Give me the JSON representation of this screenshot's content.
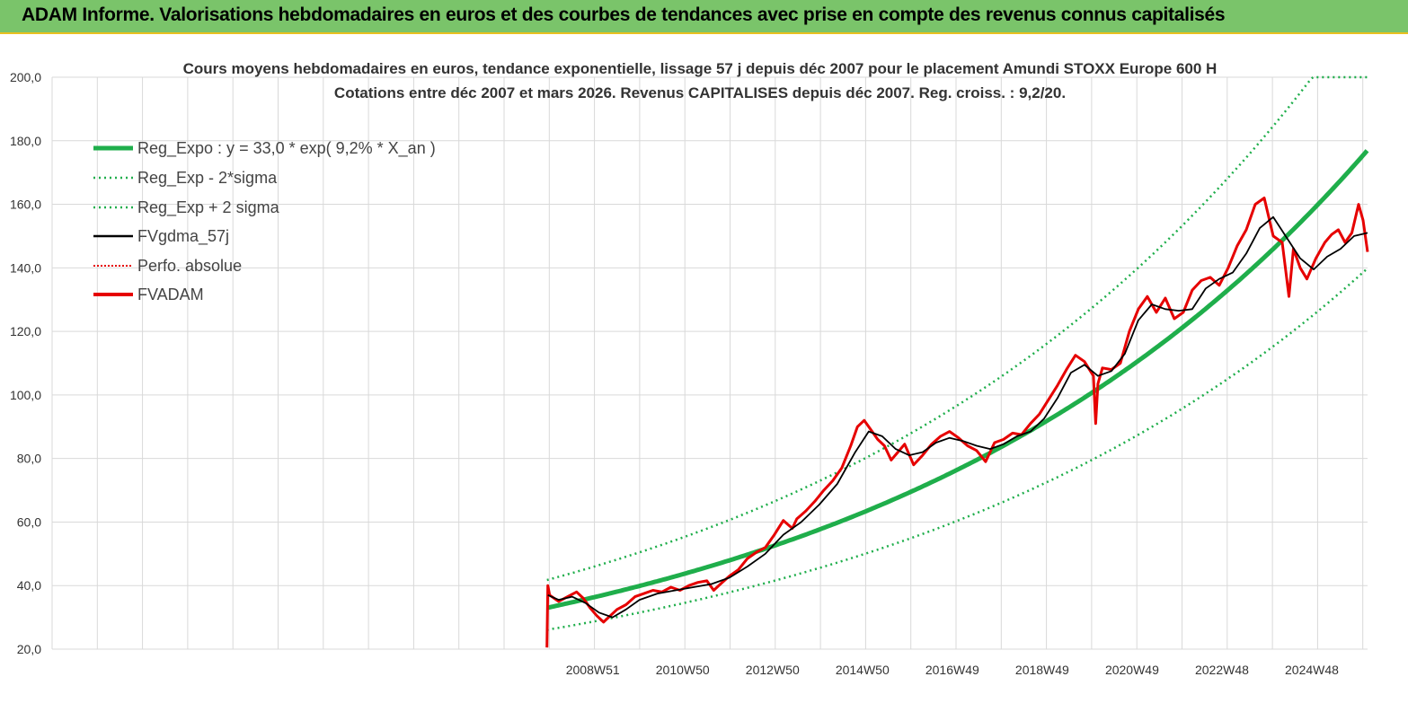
{
  "banner": {
    "title": "ADAM Informe. Valorisations hebdomadaires en euros et des courbes de tendances avec prise en compte des revenus connus capitalisés"
  },
  "colors": {
    "banner_bg": "#7ac46a",
    "trend_green": "#1fae4b",
    "fvadam_red": "#e60000",
    "smooth_black": "#000000",
    "grid": "#d9d9d9"
  },
  "chart_data": {
    "type": "line",
    "title_lines": [
      "Cours moyens hebdomadaires en euros, tendance exponentielle, lissage 57 j depuis déc 2007 pour le placement Amundi STOXX Europe 600 H",
      "Cotations entre déc 2007 et mars 2026. Revenus CAPITALISES depuis déc 2007. Reg. croiss. : 9,2/20."
    ],
    "y_ticks": [
      "20,0",
      "40,0",
      "60,0",
      "80,0",
      "100,0",
      "120,0",
      "140,0",
      "160,0",
      "180,0",
      "200,0"
    ],
    "ylim": [
      20,
      200
    ],
    "x_ticks": [
      "2008W51",
      "2010W50",
      "2012W50",
      "2014W50",
      "2016W49",
      "2018W49",
      "2020W49",
      "2022W48",
      "2024W48"
    ],
    "x_tick_years": [
      2008.96,
      2010.96,
      2012.96,
      2014.96,
      2016.96,
      2018.96,
      2020.96,
      2022.96,
      2024.96
    ],
    "xlim": [
      1996.93,
      2026.2
    ],
    "grid": true,
    "legend_position": "top-left",
    "legend": [
      "Reg_Expo : y = 33,0 * exp( 9,2% *  X_an )",
      "Reg_Exp - 2*sigma",
      "Reg_Exp + 2 sigma",
      "FVgdma_57j",
      "Perfo. absolue",
      "FVADAM"
    ],
    "regression": {
      "a": 33.0,
      "rate": 0.092,
      "start": 2007.94,
      "end": 2026.2,
      "lower_factor": 0.79,
      "upper_factor": 1.265,
      "cap": 200
    },
    "series": [
      {
        "name": "FVADAM",
        "x": [
          2007.94,
          2007.96,
          2008.0,
          2008.2,
          2008.4,
          2008.6,
          2008.75,
          2008.9,
          2009.05,
          2009.2,
          2009.35,
          2009.5,
          2009.7,
          2009.9,
          2010.1,
          2010.3,
          2010.5,
          2010.7,
          2010.9,
          2011.1,
          2011.3,
          2011.5,
          2011.65,
          2011.8,
          2012.0,
          2012.2,
          2012.4,
          2012.6,
          2012.8,
          2013.0,
          2013.2,
          2013.4,
          2013.5,
          2013.7,
          2013.9,
          2014.1,
          2014.3,
          2014.5,
          2014.7,
          2014.85,
          2015.0,
          2015.15,
          2015.3,
          2015.45,
          2015.6,
          2015.75,
          2015.9,
          2016.1,
          2016.3,
          2016.5,
          2016.7,
          2016.9,
          2017.1,
          2017.3,
          2017.5,
          2017.7,
          2017.9,
          2018.1,
          2018.3,
          2018.5,
          2018.7,
          2018.9,
          2019.1,
          2019.3,
          2019.5,
          2019.7,
          2019.9,
          2020.1,
          2020.15,
          2020.2,
          2020.3,
          2020.5,
          2020.7,
          2020.9,
          2021.1,
          2021.3,
          2021.5,
          2021.7,
          2021.9,
          2022.1,
          2022.3,
          2022.5,
          2022.7,
          2022.9,
          2023.1,
          2023.3,
          2023.5,
          2023.7,
          2023.9,
          2024.1,
          2024.3,
          2024.45,
          2024.55,
          2024.7,
          2024.85,
          2025.05,
          2025.25,
          2025.4,
          2025.55,
          2025.7,
          2025.85,
          2026.0,
          2026.1,
          2026.2
        ],
        "values": [
          20.5,
          40.0,
          37.0,
          35.0,
          36.5,
          38.0,
          36.0,
          33.0,
          30.5,
          28.5,
          30.5,
          32.5,
          34.0,
          36.5,
          37.5,
          38.5,
          38.0,
          39.5,
          38.5,
          40.0,
          41.0,
          41.5,
          38.5,
          40.5,
          43.0,
          45.0,
          48.5,
          50.5,
          52.0,
          56.0,
          60.5,
          58.0,
          61.0,
          63.5,
          66.5,
          70.0,
          73.0,
          77.0,
          84.0,
          90.0,
          92.0,
          89.0,
          86.0,
          84.0,
          79.5,
          82.0,
          84.5,
          78.0,
          81.0,
          84.5,
          87.0,
          88.5,
          86.5,
          84.0,
          82.5,
          79.0,
          85.0,
          86.0,
          88.0,
          87.5,
          91.0,
          94.0,
          98.5,
          103.0,
          108.0,
          112.5,
          110.5,
          106.0,
          91.0,
          103.5,
          108.5,
          108.0,
          110.0,
          120.0,
          127.0,
          131.0,
          126.0,
          130.5,
          124.0,
          126.0,
          133.0,
          136.0,
          137.0,
          134.5,
          140.0,
          147.0,
          152.0,
          160.0,
          162.0,
          150.0,
          148.0,
          131.0,
          146.0,
          140.0,
          136.5,
          143.0,
          148.0,
          150.5,
          152.0,
          148.0,
          151.0,
          160.0,
          155.0,
          145.0
        ]
      },
      {
        "name": "FVgdma_57j",
        "x": [
          2007.96,
          2008.2,
          2008.5,
          2008.8,
          2009.1,
          2009.4,
          2009.7,
          2010.0,
          2010.4,
          2010.8,
          2011.2,
          2011.6,
          2012.0,
          2012.4,
          2012.8,
          2013.2,
          2013.6,
          2014.0,
          2014.4,
          2014.8,
          2015.1,
          2015.4,
          2015.7,
          2016.0,
          2016.3,
          2016.6,
          2016.9,
          2017.2,
          2017.5,
          2017.8,
          2018.1,
          2018.4,
          2018.7,
          2019.0,
          2019.3,
          2019.6,
          2019.9,
          2020.2,
          2020.5,
          2020.8,
          2021.1,
          2021.4,
          2021.7,
          2022.0,
          2022.3,
          2022.6,
          2022.9,
          2023.2,
          2023.5,
          2023.8,
          2024.1,
          2024.4,
          2024.7,
          2025.0,
          2025.3,
          2025.6,
          2025.9,
          2026.2
        ],
        "values": [
          37.0,
          35.5,
          36.5,
          34.5,
          31.5,
          30.0,
          32.5,
          35.5,
          37.5,
          38.5,
          39.5,
          40.5,
          42.5,
          46.0,
          50.0,
          56.0,
          60.0,
          65.5,
          72.0,
          82.0,
          88.5,
          87.0,
          83.0,
          81.0,
          82.0,
          85.0,
          86.5,
          85.5,
          84.0,
          83.0,
          84.5,
          87.0,
          88.5,
          92.5,
          99.0,
          107.0,
          109.5,
          106.0,
          107.5,
          113.0,
          123.5,
          128.5,
          127.0,
          126.5,
          127.0,
          133.5,
          136.5,
          138.5,
          144.5,
          152.5,
          156.0,
          149.5,
          143.0,
          139.5,
          143.5,
          146.0,
          150.0,
          151.0
        ]
      }
    ]
  }
}
